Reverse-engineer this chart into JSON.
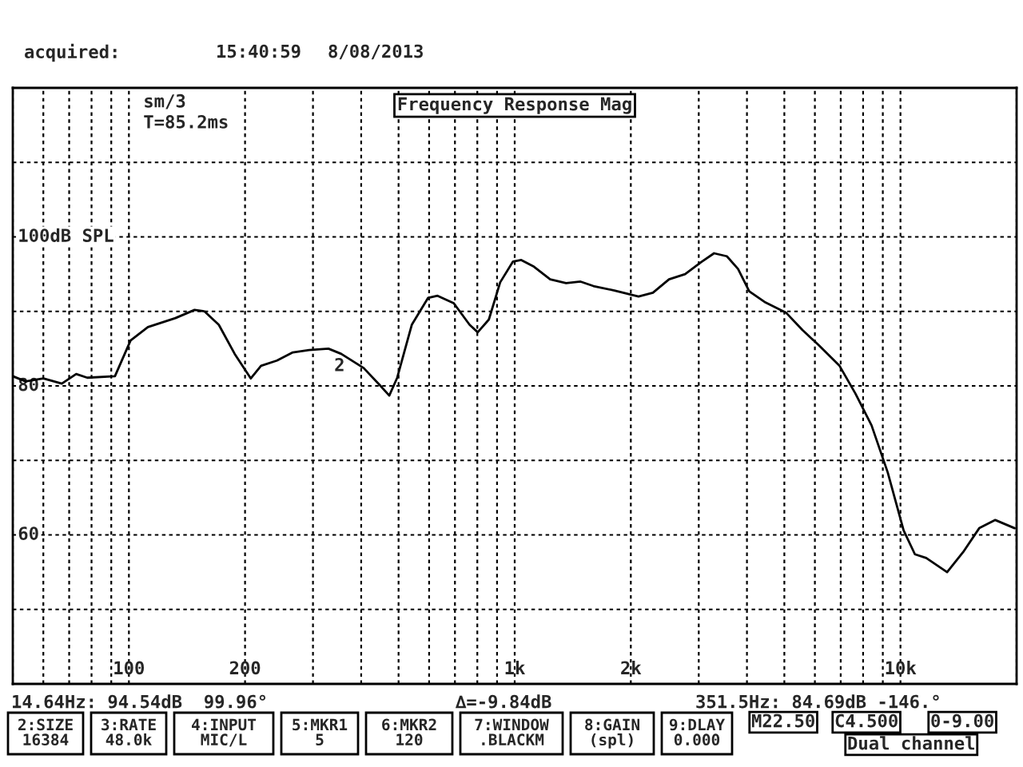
{
  "chart_data": {
    "type": "line",
    "title": "Frequency Response Mag",
    "log": "x",
    "grid": true,
    "legend": false,
    "xlim": [
      50,
      20000
    ],
    "xticks": [
      {
        "value": 50,
        "label": null
      },
      {
        "value": 60,
        "label": null
      },
      {
        "value": 70,
        "label": null
      },
      {
        "value": 80,
        "label": null
      },
      {
        "value": 90,
        "label": null
      },
      {
        "value": 100,
        "label": "100"
      },
      {
        "value": 200,
        "label": "200"
      },
      {
        "value": 300,
        "label": null
      },
      {
        "value": 400,
        "label": null
      },
      {
        "value": 500,
        "label": null
      },
      {
        "value": 600,
        "label": null
      },
      {
        "value": 700,
        "label": null
      },
      {
        "value": 800,
        "label": null
      },
      {
        "value": 900,
        "label": null
      },
      {
        "value": 1000,
        "label": "1k"
      },
      {
        "value": 2000,
        "label": "2k"
      },
      {
        "value": 3000,
        "label": null
      },
      {
        "value": 4000,
        "label": null
      },
      {
        "value": 5000,
        "label": null
      },
      {
        "value": 6000,
        "label": null
      },
      {
        "value": 7000,
        "label": null
      },
      {
        "value": 8000,
        "label": null
      },
      {
        "value": 9000,
        "label": null
      },
      {
        "value": 10000,
        "label": "10k"
      },
      {
        "value": 20000,
        "label": null
      }
    ],
    "ylim": [
      40,
      120
    ],
    "yticks": [
      {
        "value": 40,
        "label": null
      },
      {
        "value": 50,
        "label": null
      },
      60,
      {
        "value": 70,
        "label": null
      },
      80,
      {
        "value": 90,
        "label": null
      },
      {
        "value": 100,
        "label": "100dB SPL"
      },
      {
        "value": 110,
        "label": null
      },
      {
        "value": 120,
        "label": null
      }
    ],
    "series": [
      {
        "color": "#000000",
        "x": [
          50,
          54,
          60,
          67,
          73,
          78,
          92,
          101,
          112,
          132,
          148,
          157,
          171,
          188,
          207,
          220,
          242,
          266,
          293,
          329,
          355,
          406,
          447,
          473,
          496,
          541,
          596,
          631,
          695,
          764,
          802,
          857,
          917,
          990,
          1040,
          1122,
          1236,
          1359,
          1482,
          1600,
          1813,
          2094,
          2282,
          2512,
          2765,
          3042,
          3287,
          3548,
          3793,
          4055,
          4467,
          5058,
          5569,
          6131,
          6950,
          7638,
          8414,
          9265,
          10190,
          10900,
          11660,
          13210,
          14540,
          16000,
          17610,
          19770
        ],
        "values": [
          81.3,
          80.6,
          81.0,
          80.3,
          81.6,
          81.1,
          81.3,
          86.1,
          87.9,
          89.1,
          90.2,
          90.0,
          88.2,
          84.3,
          81.0,
          82.7,
          83.4,
          84.5,
          84.8,
          85.0,
          84.3,
          82.4,
          80.1,
          78.7,
          81.1,
          88.2,
          91.8,
          92.1,
          91.1,
          88.2,
          87.2,
          88.9,
          93.9,
          96.7,
          96.9,
          96.0,
          94.3,
          93.8,
          94.0,
          93.4,
          92.8,
          92.0,
          92.5,
          94.3,
          95.0,
          96.6,
          97.8,
          97.4,
          95.7,
          92.7,
          91.2,
          89.8,
          87.5,
          85.5,
          82.7,
          79.0,
          74.7,
          68.4,
          60.6,
          57.4,
          56.9,
          55.0,
          57.7,
          60.9,
          62.0,
          60.9
        ]
      }
    ],
    "annotations": [
      "acquired:",
      "15:40:59",
      "8/08/2013",
      "sm/3",
      "T=85.2ms",
      {
        "text": "2",
        "x": 351.5,
        "y": 84.69
      },
      "14.64Hz: 94.54dB  99.96°",
      "∆=-9.84dB",
      "351.5Hz: 84.69dB -146.°",
      "2:SIZE\n16384",
      "3:RATE\n48.0k",
      "4:INPUT\nMIC/L",
      "5:MKR1\n5",
      "6:MKR2\n120",
      "7:WINDOW\n.BLACKM",
      "8:GAIN\n(spl)",
      "9:DLAY\n0.000",
      "M22.50",
      "C4.500",
      "0-9.00",
      "Dual channel"
    ]
  }
}
